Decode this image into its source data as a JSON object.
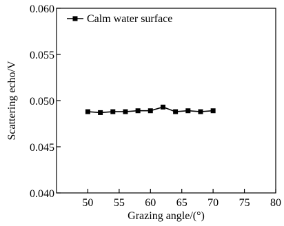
{
  "chart_data": {
    "type": "line",
    "title": "",
    "xlabel": "Grazing angle/(°)",
    "ylabel": "Scattering echo/V",
    "xlim": [
      45,
      80
    ],
    "ylim": [
      0.04,
      0.06
    ],
    "xticks": [
      50,
      55,
      60,
      65,
      70,
      75,
      80
    ],
    "xtick_labels": [
      "50",
      "55",
      "60",
      "65",
      "70",
      "75",
      "80"
    ],
    "yticks": [
      0.04,
      0.045,
      0.05,
      0.055,
      0.06
    ],
    "ytick_labels": [
      "0.040",
      "0.045",
      "0.050",
      "0.055",
      "0.060"
    ],
    "grid": false,
    "legend": {
      "position": "top-left"
    },
    "series": [
      {
        "name": "Calm water surface",
        "marker": "square",
        "color": "#000000",
        "x": [
          50,
          52,
          54,
          56,
          58,
          60,
          62,
          64,
          66,
          68,
          70
        ],
        "y": [
          0.0488,
          0.0487,
          0.0488,
          0.0488,
          0.0489,
          0.0489,
          0.0493,
          0.0488,
          0.0489,
          0.0488,
          0.0489
        ]
      }
    ]
  }
}
